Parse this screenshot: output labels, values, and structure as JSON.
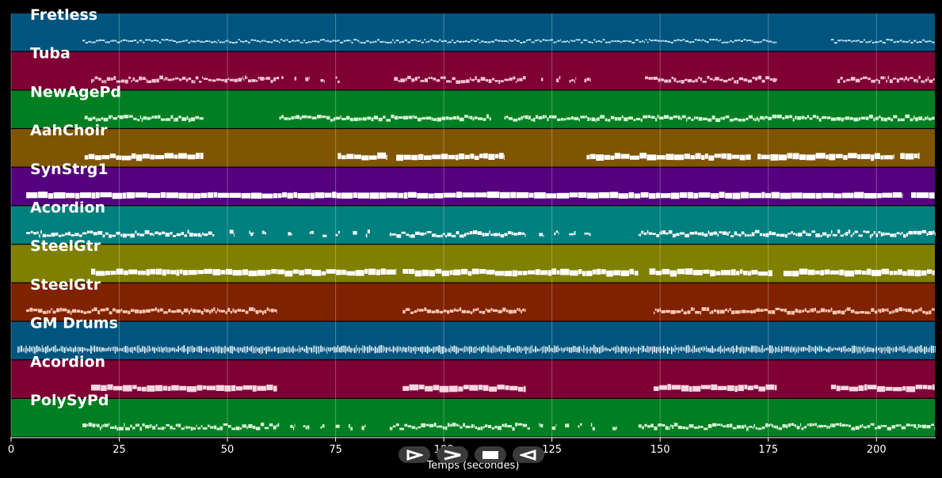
{
  "player": {
    "xlabel": "Temps (secondes)",
    "xlim": [
      0,
      213.5
    ],
    "xticks": [
      0,
      25,
      50,
      75,
      100,
      125,
      150,
      175,
      200
    ],
    "grid": true,
    "controls": [
      {
        "name": "play-icon",
        "icon": "play"
      },
      {
        "name": "forward-icon",
        "icon": "chevron-right"
      },
      {
        "name": "stop-icon",
        "icon": "stop"
      },
      {
        "name": "back-icon",
        "icon": "play-reverse"
      }
    ]
  },
  "chart_data": {
    "type": "piano-roll",
    "xlabel": "Temps (secondes)",
    "xlim": [
      0,
      213.5
    ],
    "tracks": [
      {
        "name": "Fretless",
        "color": "#00557f",
        "noteColor": "#bfe3f2",
        "style": "thin",
        "segments": [
          [
            16.5,
            177
          ],
          [
            189.5,
            213.5
          ]
        ]
      },
      {
        "name": "Tuba",
        "color": "#7f0033",
        "noteColor": "#f0c0d0",
        "style": "sparse",
        "segments": [
          [
            18.5,
            62
          ],
          [
            62.5,
            63
          ],
          [
            65.5,
            66
          ],
          [
            68,
            69
          ],
          [
            71.5,
            72.5
          ],
          [
            75,
            76
          ],
          [
            88.5,
            119
          ],
          [
            122.5,
            123
          ],
          [
            126,
            127
          ],
          [
            129,
            130.5
          ],
          [
            132.5,
            134
          ],
          [
            146.5,
            177
          ],
          [
            191,
            213.5
          ]
        ]
      },
      {
        "name": "NewAgePd",
        "color": "#007f22",
        "noteColor": "#d4f5d4",
        "style": "medium",
        "segments": [
          [
            17,
            44.5
          ],
          [
            62,
            111
          ],
          [
            114,
            213.5
          ]
        ]
      },
      {
        "name": "AahChoir",
        "color": "#7f5500",
        "noteColor": "#ffffff",
        "style": "block",
        "segments": [
          [
            17,
            44.5
          ],
          [
            75.5,
            87
          ],
          [
            89,
            114
          ],
          [
            133,
            171
          ],
          [
            172.5,
            204
          ],
          [
            205.5,
            210
          ]
        ]
      },
      {
        "name": "SynStrg1",
        "color": "#55007f",
        "noteColor": "#ffffff",
        "style": "thick",
        "segments": [
          [
            3.5,
            206
          ],
          [
            208,
            213.5
          ]
        ]
      },
      {
        "name": "Acordion",
        "color": "#007f7f",
        "noteColor": "#ffffff",
        "style": "sparse",
        "segments": [
          [
            3.5,
            47
          ],
          [
            50.5,
            51.5
          ],
          [
            55,
            56
          ],
          [
            58,
            59
          ],
          [
            64,
            65
          ],
          [
            69,
            70
          ],
          [
            72,
            73
          ],
          [
            75,
            76
          ],
          [
            79,
            80
          ],
          [
            82,
            83
          ],
          [
            87.5,
            119
          ],
          [
            122,
            123
          ],
          [
            125.5,
            126.5
          ],
          [
            129,
            130.5
          ],
          [
            132.5,
            134
          ],
          [
            145,
            213.5
          ]
        ]
      },
      {
        "name": "SteelGtr",
        "color": "#7f7f00",
        "noteColor": "#ffffff",
        "style": "block",
        "segments": [
          [
            18.5,
            89
          ],
          [
            90.5,
            145
          ],
          [
            147.5,
            176
          ],
          [
            178.5,
            213.5
          ]
        ]
      },
      {
        "name": "SteelGtr",
        "color": "#7f2200",
        "noteColor": "#f7c6b4",
        "style": "medium",
        "segments": [
          [
            3.5,
            61.5
          ],
          [
            90.5,
            119
          ],
          [
            148.5,
            213.5
          ]
        ]
      },
      {
        "name": "GM Drums",
        "color": "#00557f",
        "noteColor": "#ffffff",
        "style": "drums",
        "segments": [
          [
            1.5,
            213.5
          ]
        ]
      },
      {
        "name": "Acordion",
        "color": "#7f0033",
        "noteColor": "#f6d6e0",
        "style": "block",
        "segments": [
          [
            18.5,
            61.5
          ],
          [
            90.5,
            119
          ],
          [
            148.5,
            177
          ],
          [
            189.5,
            213.5
          ]
        ]
      },
      {
        "name": "PolySyPd",
        "color": "#007f22",
        "noteColor": "#d4f5d4",
        "style": "sparse",
        "segments": [
          [
            16.5,
            62
          ],
          [
            64.5,
            65.5
          ],
          [
            67.5,
            69
          ],
          [
            71.5,
            72.5
          ],
          [
            75,
            76
          ],
          [
            78,
            79
          ],
          [
            81,
            82
          ],
          [
            87.5,
            120
          ],
          [
            122,
            123
          ],
          [
            125,
            126
          ],
          [
            128,
            129
          ],
          [
            131,
            132
          ],
          [
            134,
            135
          ],
          [
            139,
            140
          ],
          [
            145,
            213.5
          ]
        ]
      }
    ]
  }
}
